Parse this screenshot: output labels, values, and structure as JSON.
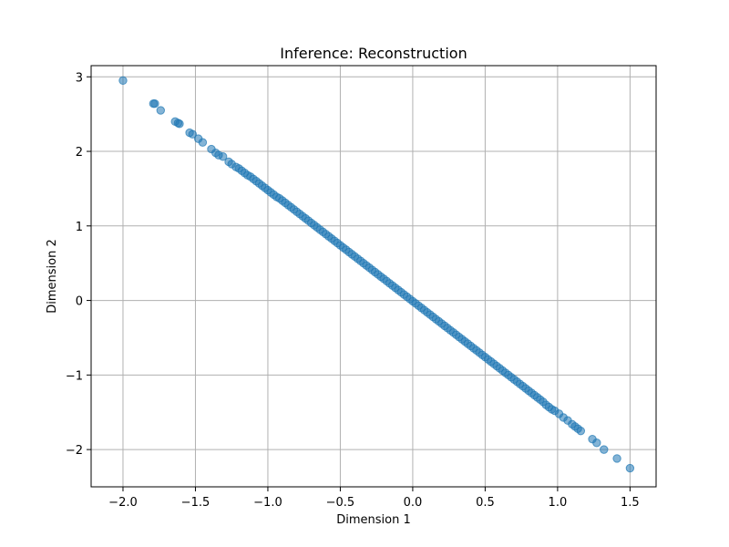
{
  "chart_data": {
    "type": "scatter",
    "title": "Inference: Reconstruction",
    "xlabel": "Dimension 1",
    "ylabel": "Dimension 2",
    "xlim": [
      -2.22,
      1.68
    ],
    "ylim": [
      -2.5,
      3.15
    ],
    "grid": true,
    "point_color": "#1f77b4",
    "x_ticks": [
      {
        "value": -2.0,
        "label": "−2.0"
      },
      {
        "value": -1.5,
        "label": "−1.5"
      },
      {
        "value": -1.0,
        "label": "−1.0"
      },
      {
        "value": -0.5,
        "label": "−0.5"
      },
      {
        "value": 0.0,
        "label": "0.0"
      },
      {
        "value": 0.5,
        "label": "0.5"
      },
      {
        "value": 1.0,
        "label": "1.0"
      },
      {
        "value": 1.5,
        "label": "1.5"
      }
    ],
    "y_ticks": [
      {
        "value": -2,
        "label": "−2"
      },
      {
        "value": -1,
        "label": "−1"
      },
      {
        "value": 0,
        "label": "0"
      },
      {
        "value": 1,
        "label": "1"
      },
      {
        "value": 2,
        "label": "2"
      },
      {
        "value": 3,
        "label": "3"
      }
    ],
    "points": [
      [
        -2.0,
        2.95
      ],
      [
        -1.79,
        2.64
      ],
      [
        -1.78,
        2.64
      ],
      [
        -1.74,
        2.55
      ],
      [
        -1.64,
        2.4
      ],
      [
        -1.62,
        2.38
      ],
      [
        -1.61,
        2.37
      ],
      [
        -1.54,
        2.25
      ],
      [
        -1.52,
        2.23
      ],
      [
        -1.48,
        2.17
      ],
      [
        -1.45,
        2.12
      ],
      [
        -1.39,
        2.03
      ],
      [
        -1.36,
        1.98
      ],
      [
        -1.34,
        1.95
      ],
      [
        -1.31,
        1.93
      ],
      [
        -1.27,
        1.86
      ],
      [
        -1.25,
        1.83
      ],
      [
        -1.22,
        1.79
      ],
      [
        -1.2,
        1.77
      ],
      [
        -1.18,
        1.74
      ],
      [
        -1.16,
        1.71
      ],
      [
        -1.14,
        1.68
      ],
      [
        -1.12,
        1.66
      ],
      [
        -1.1,
        1.63
      ],
      [
        -1.08,
        1.6
      ],
      [
        -1.06,
        1.57
      ],
      [
        -1.04,
        1.54
      ],
      [
        -1.02,
        1.51
      ],
      [
        -1.0,
        1.48
      ],
      [
        -0.98,
        1.45
      ],
      [
        -0.96,
        1.42
      ],
      [
        -0.94,
        1.39
      ],
      [
        -0.92,
        1.37
      ],
      [
        -0.9,
        1.34
      ],
      [
        -0.88,
        1.31
      ],
      [
        -0.86,
        1.28
      ],
      [
        -0.84,
        1.25
      ],
      [
        -0.82,
        1.22
      ],
      [
        -0.8,
        1.19
      ],
      [
        -0.78,
        1.16
      ],
      [
        -0.76,
        1.13
      ],
      [
        -0.74,
        1.1
      ],
      [
        -0.72,
        1.07
      ],
      [
        -0.7,
        1.04
      ],
      [
        -0.68,
        1.01
      ],
      [
        -0.66,
        0.98
      ],
      [
        -0.64,
        0.95
      ],
      [
        -0.62,
        0.92
      ],
      [
        -0.6,
        0.89
      ],
      [
        -0.58,
        0.86
      ],
      [
        -0.56,
        0.83
      ],
      [
        -0.54,
        0.8
      ],
      [
        -0.52,
        0.77
      ],
      [
        -0.5,
        0.74
      ],
      [
        -0.48,
        0.71
      ],
      [
        -0.46,
        0.68
      ],
      [
        -0.44,
        0.65
      ],
      [
        -0.42,
        0.62
      ],
      [
        -0.4,
        0.59
      ],
      [
        -0.38,
        0.56
      ],
      [
        -0.36,
        0.53
      ],
      [
        -0.34,
        0.5
      ],
      [
        -0.32,
        0.47
      ],
      [
        -0.3,
        0.44
      ],
      [
        -0.28,
        0.41
      ],
      [
        -0.26,
        0.38
      ],
      [
        -0.24,
        0.35
      ],
      [
        -0.22,
        0.32
      ],
      [
        -0.2,
        0.29
      ],
      [
        -0.18,
        0.26
      ],
      [
        -0.16,
        0.23
      ],
      [
        -0.14,
        0.2
      ],
      [
        -0.12,
        0.17
      ],
      [
        -0.1,
        0.14
      ],
      [
        -0.08,
        0.11
      ],
      [
        -0.06,
        0.08
      ],
      [
        -0.04,
        0.05
      ],
      [
        -0.02,
        0.02
      ],
      [
        0.0,
        -0.01
      ],
      [
        0.02,
        -0.04
      ],
      [
        0.04,
        -0.07
      ],
      [
        0.06,
        -0.1
      ],
      [
        0.08,
        -0.13
      ],
      [
        0.1,
        -0.16
      ],
      [
        0.12,
        -0.19
      ],
      [
        0.14,
        -0.22
      ],
      [
        0.16,
        -0.25
      ],
      [
        0.18,
        -0.28
      ],
      [
        0.2,
        -0.31
      ],
      [
        0.22,
        -0.34
      ],
      [
        0.24,
        -0.37
      ],
      [
        0.26,
        -0.4
      ],
      [
        0.28,
        -0.43
      ],
      [
        0.3,
        -0.46
      ],
      [
        0.32,
        -0.49
      ],
      [
        0.34,
        -0.52
      ],
      [
        0.36,
        -0.55
      ],
      [
        0.38,
        -0.58
      ],
      [
        0.4,
        -0.61
      ],
      [
        0.42,
        -0.64
      ],
      [
        0.44,
        -0.67
      ],
      [
        0.46,
        -0.7
      ],
      [
        0.48,
        -0.73
      ],
      [
        0.5,
        -0.76
      ],
      [
        0.52,
        -0.79
      ],
      [
        0.54,
        -0.82
      ],
      [
        0.56,
        -0.85
      ],
      [
        0.58,
        -0.88
      ],
      [
        0.6,
        -0.91
      ],
      [
        0.62,
        -0.94
      ],
      [
        0.64,
        -0.97
      ],
      [
        0.66,
        -1.0
      ],
      [
        0.68,
        -1.03
      ],
      [
        0.7,
        -1.06
      ],
      [
        0.72,
        -1.09
      ],
      [
        0.74,
        -1.12
      ],
      [
        0.76,
        -1.15
      ],
      [
        0.78,
        -1.18
      ],
      [
        0.8,
        -1.21
      ],
      [
        0.82,
        -1.24
      ],
      [
        0.84,
        -1.27
      ],
      [
        0.86,
        -1.3
      ],
      [
        0.88,
        -1.33
      ],
      [
        0.9,
        -1.36
      ],
      [
        0.92,
        -1.4
      ],
      [
        0.94,
        -1.43
      ],
      [
        0.96,
        -1.46
      ],
      [
        0.98,
        -1.48
      ],
      [
        1.01,
        -1.52
      ],
      [
        1.04,
        -1.57
      ],
      [
        1.07,
        -1.61
      ],
      [
        1.1,
        -1.66
      ],
      [
        1.12,
        -1.69
      ],
      [
        1.14,
        -1.72
      ],
      [
        1.16,
        -1.75
      ],
      [
        1.24,
        -1.86
      ],
      [
        1.27,
        -1.91
      ],
      [
        1.32,
        -2.0
      ],
      [
        1.41,
        -2.12
      ],
      [
        1.5,
        -2.25
      ]
    ]
  }
}
